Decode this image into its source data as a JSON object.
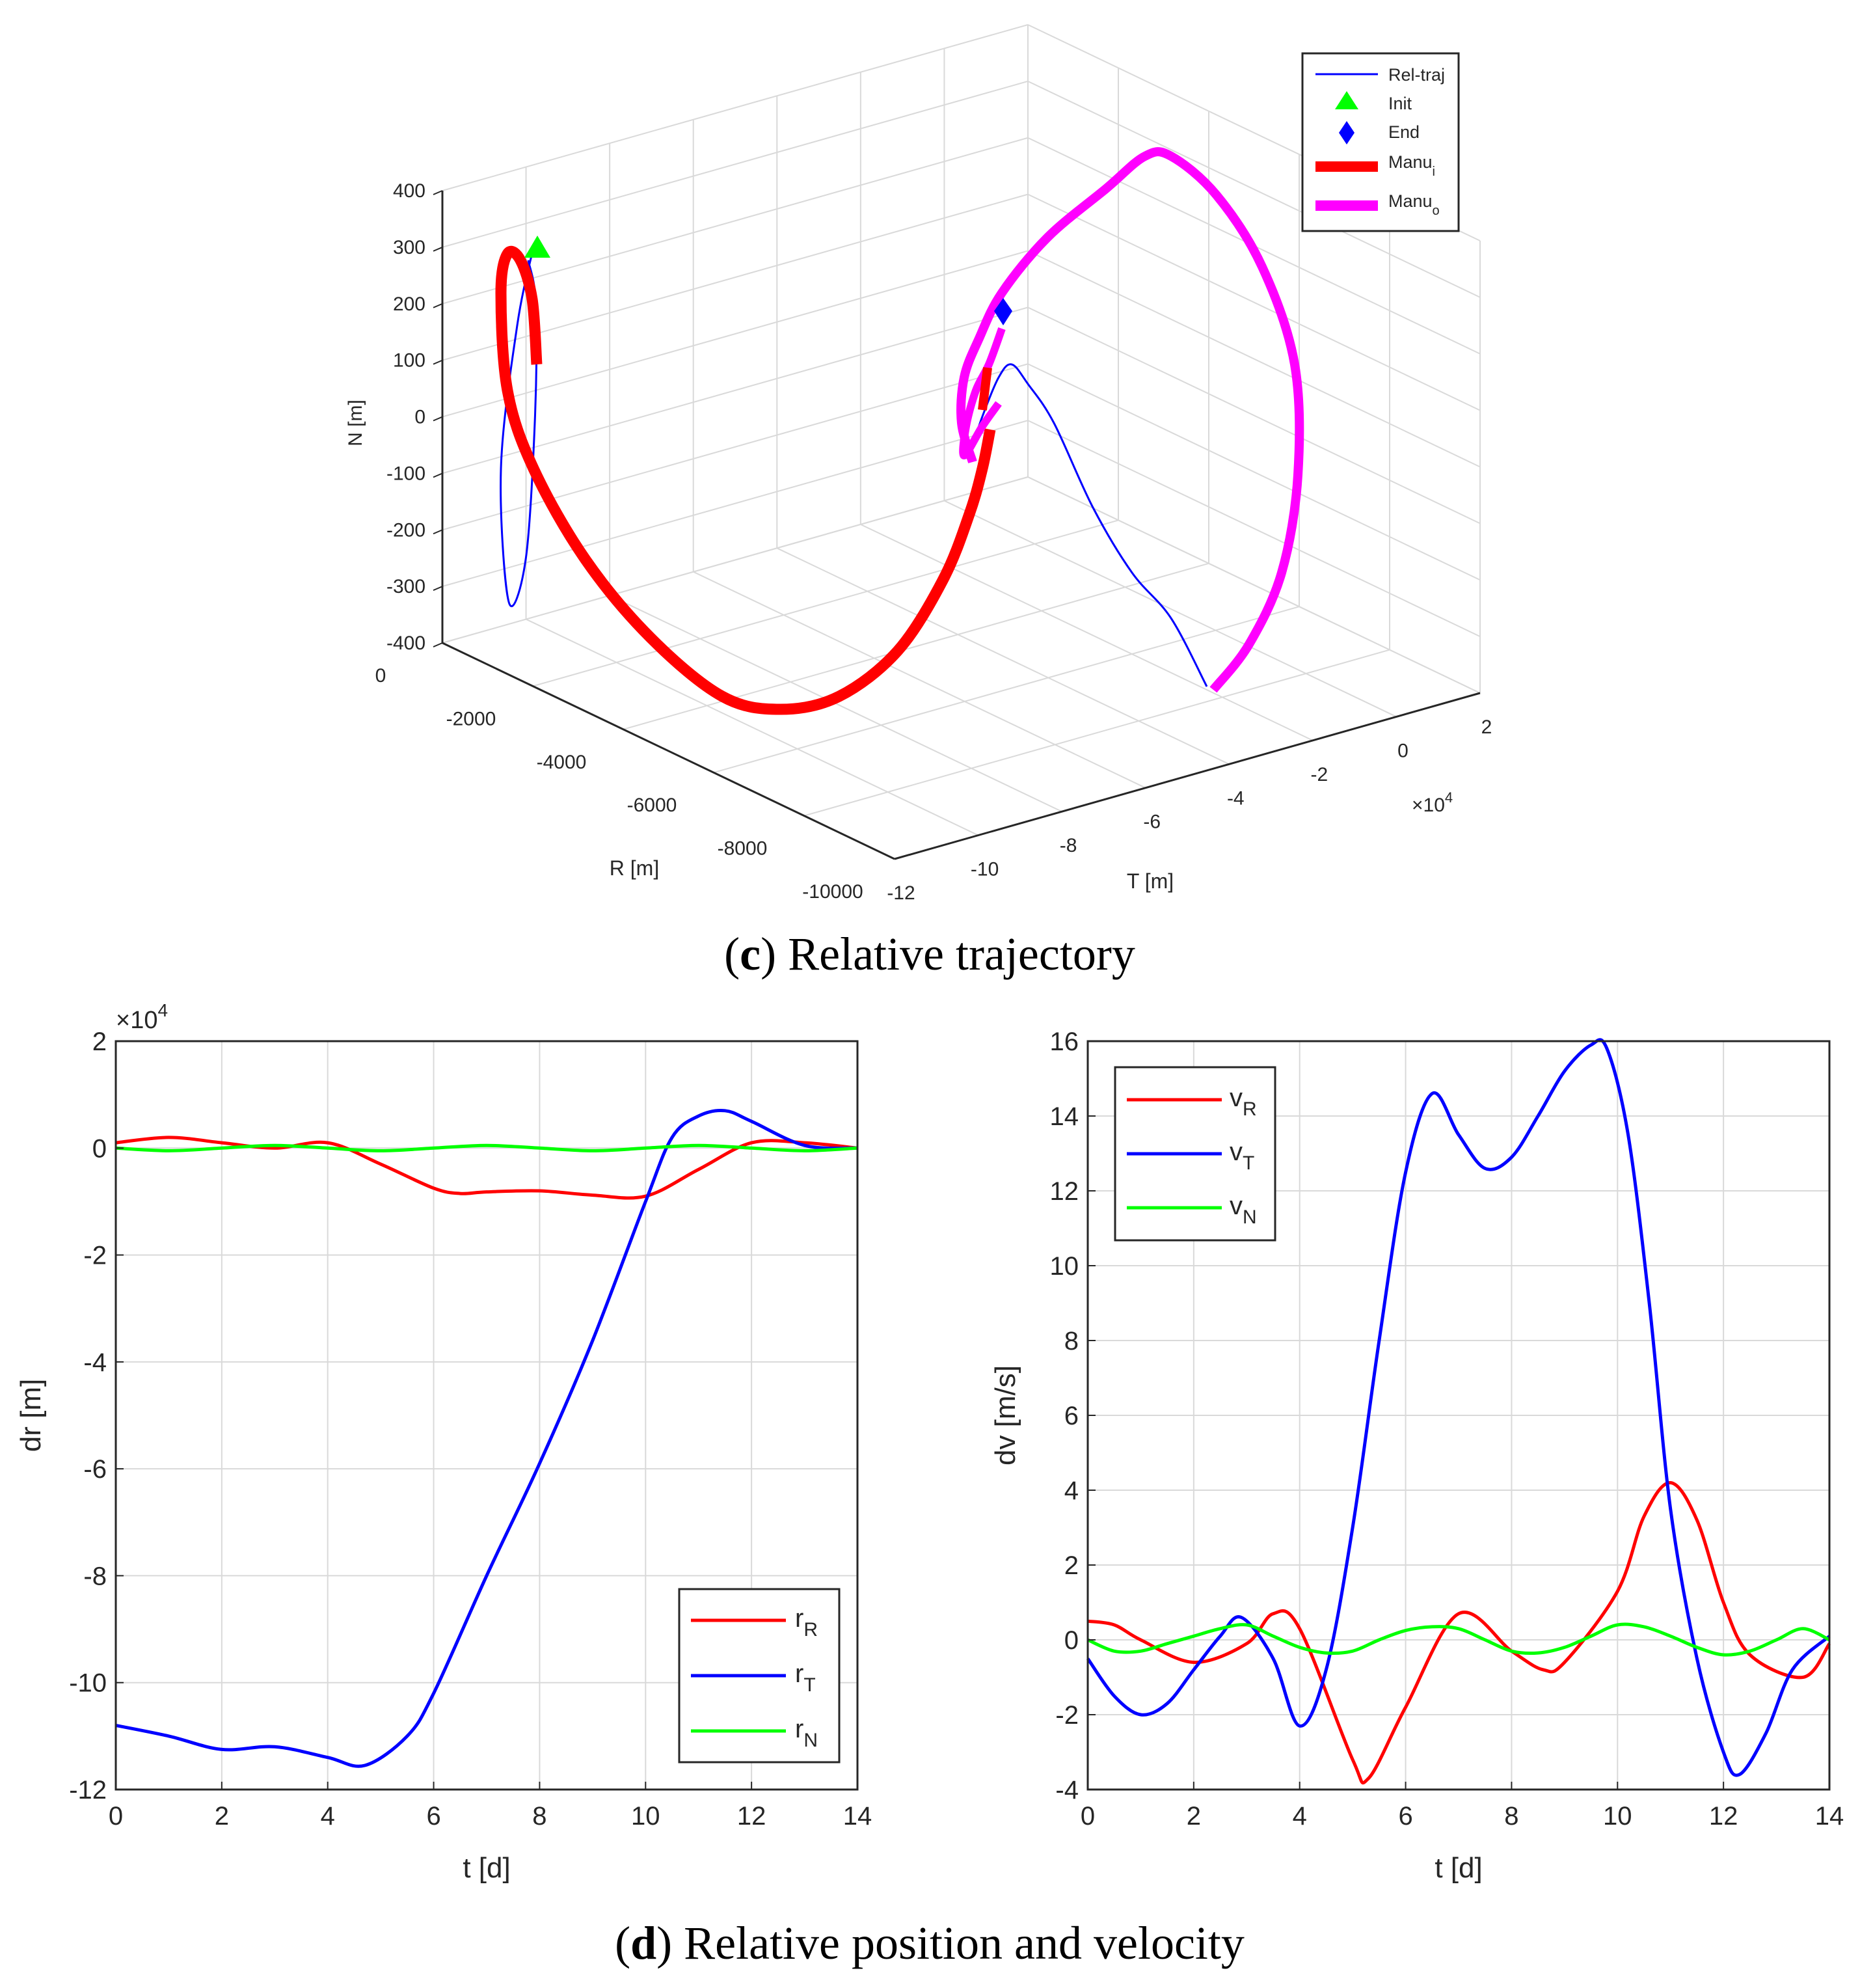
{
  "colors": {
    "red": "#ff0000",
    "blue": "#0000ff",
    "green": "#00ff00",
    "magenta": "#ff00ff",
    "grid": "#d9d9d9",
    "axis": "#262626"
  },
  "captions": {
    "c": {
      "label": "c",
      "text": ") Relative trajectory"
    },
    "d": {
      "label": "d",
      "text": ") Relative position and velocity"
    }
  },
  "chart_data": [
    {
      "id": "traj3d",
      "type": "line3d",
      "xlabel": "R [m]",
      "ylabel": "T [m]",
      "zlabel": "N [m]",
      "x_ticks": [
        "0",
        "-2000",
        "-4000",
        "-6000",
        "-8000",
        "-10000"
      ],
      "y_ticks": [
        "-12",
        "-10",
        "-8",
        "-6",
        "-4",
        "-2",
        "0",
        "2"
      ],
      "y_exponent": "×10",
      "y_exponent_power": "4",
      "z_ticks": [
        "400",
        "300",
        "200",
        "100",
        "0",
        "-100",
        "-200",
        "-300",
        "-400"
      ],
      "xlim": [
        -10000,
        0
      ],
      "ylim": [
        -120000,
        20000
      ],
      "zlim": [
        -400,
        400
      ],
      "legend": [
        {
          "label": "Rel-traj",
          "sub": "",
          "marker": "line",
          "color": "#0000ff"
        },
        {
          "label": "Init",
          "sub": "",
          "marker": "triangle",
          "color": "#00ff00"
        },
        {
          "label": "End",
          "sub": "",
          "marker": "diamond",
          "color": "#0000ff"
        },
        {
          "label": "Manu",
          "sub": "i",
          "marker": "thick",
          "color": "#ff0000"
        },
        {
          "label": "Manu",
          "sub": "o",
          "marker": "thick",
          "color": "#ff00ff"
        }
      ]
    },
    {
      "id": "position",
      "type": "line",
      "xlabel": "t [d]",
      "ylabel": "dr [m]",
      "xlim": [
        0,
        14
      ],
      "ylim": [
        -12,
        2
      ],
      "y_exponent": "×10",
      "y_exponent_power": "4",
      "x_ticks": [
        0,
        2,
        4,
        6,
        8,
        10,
        12,
        14
      ],
      "y_ticks": [
        2,
        0,
        -2,
        -4,
        -6,
        -8,
        -10,
        -12
      ],
      "legend": [
        {
          "label": "r",
          "sub": "R"
        },
        {
          "label": "r",
          "sub": "T"
        },
        {
          "label": "r",
          "sub": "N"
        }
      ],
      "series": [
        {
          "name": "r_R",
          "color": "#ff0000",
          "x": [
            0,
            1,
            2,
            3,
            4,
            5,
            6,
            6.5,
            7,
            8,
            9,
            10,
            11,
            12,
            13,
            14
          ],
          "y": [
            0.1,
            0.2,
            0.1,
            0.0,
            0.1,
            -0.3,
            -0.75,
            -0.85,
            -0.82,
            -0.8,
            -0.88,
            -0.9,
            -0.4,
            0.1,
            0.1,
            0.0
          ]
        },
        {
          "name": "r_T",
          "color": "#0000ff",
          "x": [
            0,
            1,
            2,
            3,
            4,
            4.7,
            5.5,
            6,
            7,
            8,
            9,
            10,
            10.5,
            11,
            11.5,
            12,
            13,
            14
          ],
          "y": [
            -10.8,
            -11.0,
            -11.25,
            -11.2,
            -11.4,
            -11.55,
            -11.0,
            -10.2,
            -8.0,
            -5.9,
            -3.6,
            -1.0,
            0.2,
            0.6,
            0.7,
            0.5,
            0.05,
            0.0
          ]
        },
        {
          "name": "r_N",
          "color": "#00ff00",
          "x": [
            0,
            1,
            2,
            3,
            4,
            5,
            6,
            7,
            8,
            9,
            10,
            11,
            12,
            13,
            14
          ],
          "y": [
            0.0,
            -0.05,
            0.0,
            0.05,
            0.0,
            -0.05,
            0.0,
            0.05,
            0.0,
            -0.05,
            0.0,
            0.05,
            0.0,
            -0.05,
            0.0
          ]
        }
      ]
    },
    {
      "id": "velocity",
      "type": "line",
      "xlabel": "t [d]",
      "ylabel": "dv [m/s]",
      "xlim": [
        0,
        14
      ],
      "ylim": [
        -4,
        16
      ],
      "x_ticks": [
        0,
        2,
        4,
        6,
        8,
        10,
        12,
        14
      ],
      "y_ticks": [
        16,
        14,
        12,
        10,
        8,
        6,
        4,
        2,
        0,
        -2,
        -4
      ],
      "legend": [
        {
          "label": "v",
          "sub": "R"
        },
        {
          "label": "v",
          "sub": "T"
        },
        {
          "label": "v",
          "sub": "N"
        }
      ],
      "series": [
        {
          "name": "v_R",
          "color": "#ff0000",
          "x": [
            0,
            0.5,
            1,
            2,
            3,
            3.5,
            4,
            5,
            5.3,
            6,
            7,
            8,
            8.6,
            9,
            10,
            10.5,
            11,
            11.5,
            12,
            12.5,
            13.5,
            14
          ],
          "y": [
            0.5,
            0.4,
            0.0,
            -0.6,
            -0.1,
            0.7,
            0.3,
            -3.2,
            -3.7,
            -1.8,
            0.7,
            -0.3,
            -0.8,
            -0.6,
            1.3,
            3.3,
            4.2,
            3.2,
            1.0,
            -0.4,
            -1.0,
            -0.1
          ]
        },
        {
          "name": "v_T",
          "color": "#0000ff",
          "x": [
            0,
            0.5,
            1,
            1.5,
            2,
            2.5,
            2.9,
            3.5,
            4,
            4.5,
            5,
            5.5,
            6,
            6.5,
            7,
            7.5,
            8,
            8.5,
            9,
            9.5,
            9.8,
            10.2,
            10.6,
            11,
            11.5,
            12,
            12.3,
            12.8,
            13.3,
            14
          ],
          "y": [
            -0.5,
            -1.5,
            -2.0,
            -1.7,
            -0.8,
            0.1,
            0.6,
            -0.5,
            -2.3,
            -0.8,
            3.0,
            8.0,
            12.5,
            14.6,
            13.5,
            12.6,
            12.9,
            14.0,
            15.2,
            15.9,
            15.8,
            13.5,
            9.0,
            3.5,
            -0.5,
            -3.0,
            -3.6,
            -2.5,
            -0.8,
            0.1
          ]
        },
        {
          "name": "v_N",
          "color": "#00ff00",
          "x": [
            0,
            0.5,
            1,
            1.5,
            2,
            2.5,
            3,
            3.5,
            4,
            4.5,
            5,
            5.5,
            6,
            6.5,
            7,
            7.5,
            8,
            8.5,
            9,
            9.5,
            10,
            10.5,
            11,
            11.5,
            12,
            12.5,
            13,
            13.5,
            14
          ],
          "y": [
            0.0,
            -0.3,
            -0.3,
            -0.1,
            0.1,
            0.3,
            0.4,
            0.1,
            -0.2,
            -0.35,
            -0.3,
            0.0,
            0.25,
            0.35,
            0.3,
            0.0,
            -0.3,
            -0.35,
            -0.2,
            0.1,
            0.4,
            0.35,
            0.1,
            -0.2,
            -0.4,
            -0.3,
            0.0,
            0.3,
            0.0
          ]
        }
      ]
    }
  ]
}
